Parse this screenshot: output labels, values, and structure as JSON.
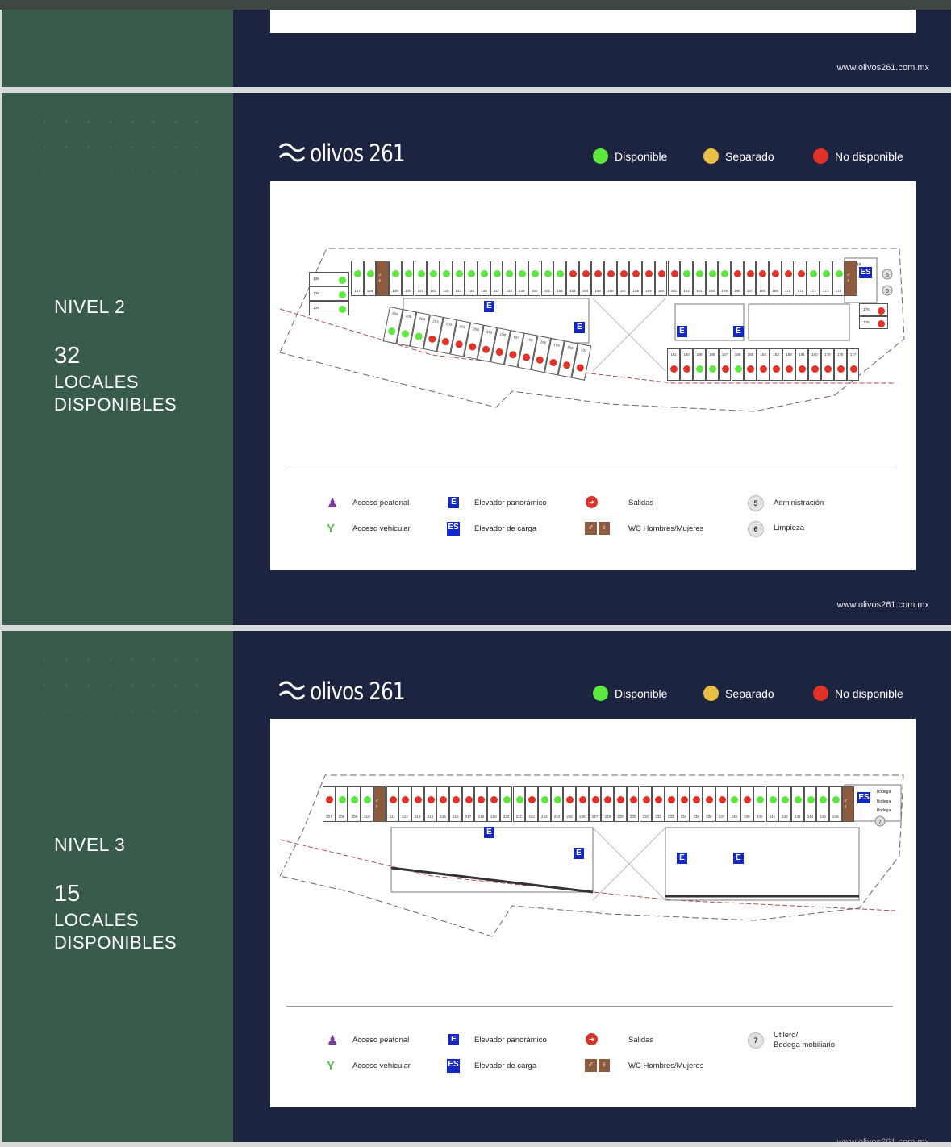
{
  "brand": {
    "logo_text": "olivos 261",
    "url": "www.olivos261.com.mx"
  },
  "status_legend": [
    {
      "label": "Disponible",
      "color": "#5de83e"
    },
    {
      "label": "Separado",
      "color": "#e8bf45"
    },
    {
      "label": "No disponible",
      "color": "#e23127"
    }
  ],
  "colors": {
    "available": "#5de83e",
    "reserved": "#e8bf45",
    "unavailable": "#e23127",
    "sidebar": "#385b4c",
    "background": "#1d2440",
    "elevator": "#1428c8",
    "wc": "#8c5a3c"
  },
  "level2": {
    "title": "NIVEL 2",
    "count": "32",
    "sub1": "LOCALES",
    "sub2": "DISPONIBLES",
    "top_row": [
      [
        "137",
        "g"
      ],
      [
        "138",
        "g"
      ],
      [
        "WC",
        "wc"
      ],
      [
        "139",
        "g"
      ],
      [
        "140",
        "g"
      ],
      [
        "141",
        "g"
      ],
      [
        "142",
        "g"
      ],
      [
        "143",
        "g"
      ],
      [
        "144",
        "g"
      ],
      [
        "145",
        "g"
      ],
      [
        "146",
        "g"
      ],
      [
        "147",
        "g"
      ],
      [
        "148",
        "g"
      ],
      [
        "149",
        "g"
      ],
      [
        "150",
        "g"
      ],
      [
        "151",
        "g"
      ],
      [
        "152",
        "g"
      ],
      [
        "153",
        "r"
      ],
      [
        "154",
        "r"
      ],
      [
        "155",
        "r"
      ],
      [
        "156",
        "r"
      ],
      [
        "157",
        "r"
      ],
      [
        "158",
        "r"
      ],
      [
        "159",
        "r"
      ],
      [
        "160",
        "r"
      ],
      [
        "161",
        "r"
      ],
      [
        "162",
        "g"
      ],
      [
        "163",
        "g"
      ],
      [
        "164",
        "g"
      ],
      [
        "165",
        "g"
      ],
      [
        "166",
        "r"
      ],
      [
        "167",
        "r"
      ],
      [
        "168",
        "r"
      ],
      [
        "169",
        "r"
      ],
      [
        "170",
        "r"
      ],
      [
        "171",
        "r"
      ],
      [
        "172",
        "g"
      ],
      [
        "173",
        "g"
      ],
      [
        "174",
        "g"
      ],
      [
        "WC",
        "wc"
      ]
    ],
    "corner": [
      [
        "136",
        "g"
      ],
      [
        "135",
        "g"
      ],
      [
        "134",
        "g"
      ]
    ],
    "curve_row": [
      [
        "206",
        "g"
      ],
      [
        "205",
        "g"
      ],
      [
        "204",
        "g"
      ],
      [
        "203",
        "r"
      ],
      [
        "202",
        "r"
      ],
      [
        "201",
        "r"
      ],
      [
        "200",
        "r"
      ],
      [
        "199",
        "r"
      ],
      [
        "198",
        "r"
      ],
      [
        "197",
        "r"
      ],
      [
        "196",
        "r"
      ],
      [
        "195",
        "r"
      ],
      [
        "194",
        "r"
      ],
      [
        "193",
        "r"
      ],
      [
        "192",
        "r"
      ]
    ],
    "bottom_row": [
      [
        "191",
        "r"
      ],
      [
        "190",
        "r"
      ],
      [
        "189",
        "g"
      ],
      [
        "188",
        "g"
      ],
      [
        "187",
        "r"
      ],
      [
        "186",
        "g"
      ],
      [
        "185",
        "r"
      ],
      [
        "184",
        "r"
      ],
      [
        "183",
        "r"
      ],
      [
        "182",
        "r"
      ],
      [
        "181",
        "r"
      ],
      [
        "180",
        "r"
      ],
      [
        "179",
        "r"
      ],
      [
        "178",
        "r"
      ],
      [
        "177",
        "r"
      ]
    ],
    "side_units": [
      [
        "175",
        "r"
      ],
      [
        "176",
        "r"
      ]
    ],
    "rooms": {
      "storage": "Bodega",
      "admin": "5",
      "cleaning": "6"
    }
  },
  "level3": {
    "title": "NIVEL 3",
    "count": "15",
    "sub1": "LOCALES",
    "sub2": "DISPONIBLES",
    "top_row": [
      [
        "207",
        "r"
      ],
      [
        "208",
        "g"
      ],
      [
        "209",
        "g"
      ],
      [
        "210",
        "g"
      ],
      [
        "WC",
        "wc"
      ],
      [
        "211",
        "r"
      ],
      [
        "212",
        "r"
      ],
      [
        "213",
        "r"
      ],
      [
        "214",
        "r"
      ],
      [
        "215",
        "r"
      ],
      [
        "216",
        "r"
      ],
      [
        "217",
        "r"
      ],
      [
        "218",
        "r"
      ],
      [
        "219",
        "r"
      ],
      [
        "220",
        "g"
      ],
      [
        "221",
        "g"
      ],
      [
        "222",
        "r"
      ],
      [
        "223",
        "g"
      ],
      [
        "224",
        "g"
      ],
      [
        "225",
        "r"
      ],
      [
        "226",
        "r"
      ],
      [
        "227",
        "r"
      ],
      [
        "228",
        "r"
      ],
      [
        "229",
        "r"
      ],
      [
        "230",
        "r"
      ],
      [
        "231",
        "r"
      ],
      [
        "232",
        "r"
      ],
      [
        "233",
        "r"
      ],
      [
        "234",
        "r"
      ],
      [
        "235",
        "r"
      ],
      [
        "236",
        "r"
      ],
      [
        "237",
        "r"
      ],
      [
        "238",
        "g"
      ],
      [
        "239",
        "r"
      ],
      [
        "240",
        "g"
      ],
      [
        "241",
        "g"
      ],
      [
        "242",
        "g"
      ],
      [
        "243",
        "g"
      ],
      [
        "244",
        "g"
      ],
      [
        "245",
        "g"
      ],
      [
        "246",
        "g"
      ],
      [
        "WC",
        "wc"
      ]
    ],
    "rooms": {
      "storage": "Bodega",
      "utility": "7"
    }
  },
  "map_legend": {
    "pedestrian": "Acceso peatonal",
    "vehicle": "Acceso vehicular",
    "elevator": "Elevador panorámico",
    "elevator_icon": "E",
    "freight": "Elevador de carga",
    "freight_icon": "ES",
    "exits": "Salidas",
    "wc": "WC Hombres/Mujeres",
    "admin_num": "5",
    "admin": "Administración",
    "cleaning_num": "6",
    "cleaning": "Limpieza",
    "utility_num": "7",
    "utility1": "Utilero/",
    "utility2": "Bodega mobiliario"
  }
}
